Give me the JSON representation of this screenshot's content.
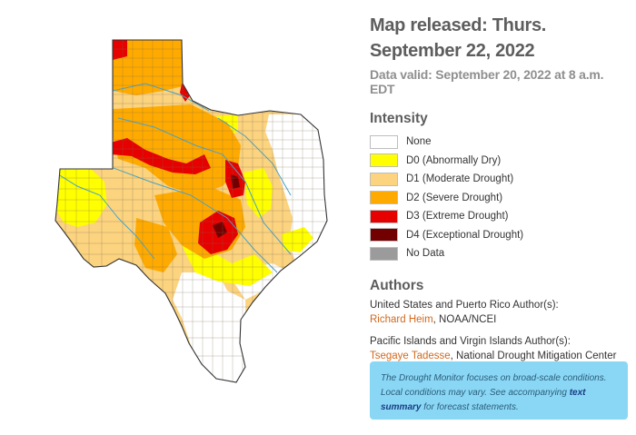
{
  "header": {
    "title": "Map released: Thurs. September 22, 2022",
    "valid": "Data valid: September 20, 2022 at 8 a.m. EDT"
  },
  "legend": {
    "heading": "Intensity",
    "items": [
      {
        "label": "None",
        "color": "#ffffff"
      },
      {
        "label": "D0 (Abnormally Dry)",
        "color": "#ffff00"
      },
      {
        "label": "D1 (Moderate Drought)",
        "color": "#fcd37f"
      },
      {
        "label": "D2 (Severe Drought)",
        "color": "#ffaa00"
      },
      {
        "label": "D3 (Extreme Drought)",
        "color": "#e60000"
      },
      {
        "label": "D4 (Exceptional Drought)",
        "color": "#730000"
      },
      {
        "label": "No Data",
        "color": "#9b9b9b"
      }
    ]
  },
  "authors": {
    "heading": "Authors",
    "us_label": "United States and Puerto Rico Author(s):",
    "us_name": "Richard Heim",
    "us_org": ", NOAA/NCEI",
    "pacific_label": "Pacific Islands and Virgin Islands Author(s):",
    "pacific_name": "Tsegaye Tadesse",
    "pacific_org": ", National Drought Mitigation Center"
  },
  "note": {
    "text1": "The Drought Monitor focuses on broad-scale conditions. Local conditions may vary. See accompanying ",
    "link": "text summary",
    "text2": " for forecast statements."
  },
  "map": {
    "region": "texas-drought-map"
  }
}
